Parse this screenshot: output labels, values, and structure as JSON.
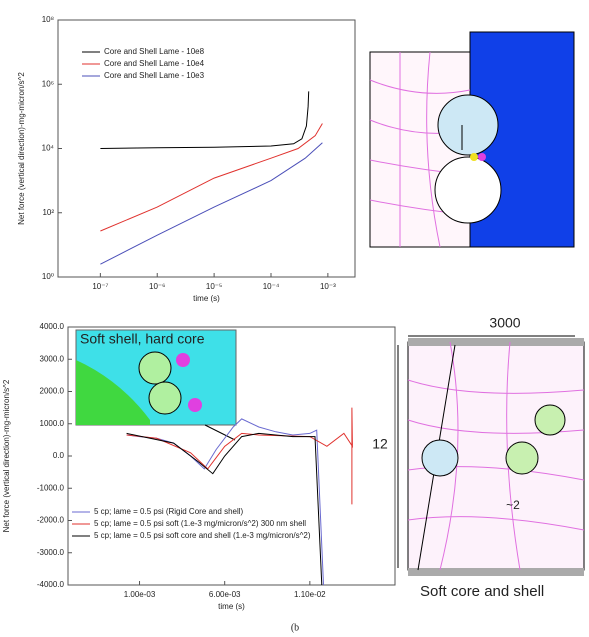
{
  "chart_data": [
    {
      "type": "line",
      "log_x": true,
      "log_y": true,
      "y_label": "Net force (vertical direction)-mg-micron/s^2",
      "x_label": "time (s)",
      "xlim": [
        1.8e-08,
        0.003
      ],
      "ylim": [
        1,
        100000000.0
      ],
      "xticks": [
        {
          "value": 1e-07,
          "label": "10⁻⁷"
        },
        {
          "value": 1e-06,
          "label": "10⁻⁶"
        },
        {
          "value": 1e-05,
          "label": "10⁻⁵"
        },
        {
          "value": 0.0001,
          "label": "10⁻⁴"
        },
        {
          "value": 0.001,
          "label": "10⁻³"
        }
      ],
      "yticks": [
        {
          "value": 1,
          "label": "10⁰"
        },
        {
          "value": 100,
          "label": "10²"
        },
        {
          "value": 10000,
          "label": "10⁴"
        },
        {
          "value": 1000000,
          "label": "10⁶"
        },
        {
          "value": 100000000,
          "label": "10⁸"
        }
      ],
      "series": [
        {
          "name": "Core and Shell Lame - 10e8",
          "color": "#000000",
          "x": [
            1e-07,
            1e-06,
            1e-05,
            0.0001,
            0.00025,
            0.00035,
            0.00042,
            0.00045,
            0.00046
          ],
          "values": [
            10000,
            10500,
            11000,
            12000,
            14000,
            20000,
            50000,
            200000,
            600000
          ]
        },
        {
          "name": "Core and Shell Lame - 10e4",
          "color": "#e0322e",
          "x": [
            1e-07,
            1e-06,
            1e-05,
            0.0001,
            0.0003,
            0.0006,
            0.0008
          ],
          "values": [
            27,
            150,
            1200,
            5000,
            10000,
            25000,
            60000
          ]
        },
        {
          "name": "Core and Shell Lame - 10e3",
          "color": "#4b4fb8",
          "x": [
            1e-07,
            1e-06,
            1e-05,
            0.0001,
            0.0004,
            0.0008
          ],
          "values": [
            2.5,
            20,
            150,
            1000,
            5000,
            15000
          ]
        }
      ]
    },
    {
      "type": "line",
      "log_x": false,
      "log_y": false,
      "y_label": "Net force (vertical direction)-mg-micron/s^2",
      "x_label": "time (s)",
      "xlim": [
        -0.0032,
        0.016
      ],
      "ylim": [
        -4000,
        4000
      ],
      "xticks": [
        {
          "value": 0.001,
          "label": "1.00e-03"
        },
        {
          "value": 0.006,
          "label": "6.00e-03"
        },
        {
          "value": 0.011,
          "label": "1.10e-02"
        }
      ],
      "yticks": [
        {
          "value": 4000,
          "label": "4000.0"
        },
        {
          "value": 3000,
          "label": "3000.0"
        },
        {
          "value": 2000,
          "label": "2000.0"
        },
        {
          "value": 1000,
          "label": "1000.0"
        },
        {
          "value": 0,
          "label": "0.0"
        },
        {
          "value": -1000,
          "label": "-1000.0"
        },
        {
          "value": -2000,
          "label": "-2000.0"
        },
        {
          "value": -3000,
          "label": "-3000.0"
        },
        {
          "value": -4000,
          "label": "-4000.0"
        }
      ],
      "series": [
        {
          "name": "5 cp; lame = 0.5 psi (Rigid Core and shell)",
          "color": "#6a6ad0",
          "x": [
            0.00024,
            0.001,
            0.002,
            0.003,
            0.004,
            0.0048,
            0.0055,
            0.0065,
            0.007,
            0.008,
            0.009,
            0.01,
            0.011,
            0.0114,
            0.0118
          ],
          "values": [
            650,
            600,
            550,
            400,
            0,
            -400,
            200,
            900,
            1150,
            900,
            750,
            650,
            700,
            800,
            -4000
          ]
        },
        {
          "name": "5 cp; lame = 0.5 psi soft (1.e-3 mg/micron/s^2) 300 nm shell",
          "color": "#e0322e",
          "x": [
            0.00024,
            0.002,
            0.004,
            0.005,
            0.006,
            0.007,
            0.008,
            0.011,
            0.012,
            0.013,
            0.0135,
            0.01347,
            0.01347
          ],
          "values": [
            650,
            550,
            100,
            -400,
            300,
            700,
            650,
            600,
            300,
            700,
            300,
            1500,
            -1500
          ]
        },
        {
          "name": "5 cp; lame = 0.5 psi soft core and shell (1.e-3 mg/micron/s^2)",
          "color": "#000000",
          "x": [
            0.00024,
            0.003,
            0.0045,
            0.0053,
            0.006,
            0.007,
            0.008,
            0.01,
            0.0113,
            0.0117
          ],
          "values": [
            700,
            400,
            -200,
            -550,
            0,
            600,
            700,
            600,
            600,
            -4000
          ]
        }
      ]
    }
  ],
  "figure": {
    "inset_label": "Soft shell, hard core",
    "width_label": "3000",
    "height_label": "12",
    "gap_label": "~2",
    "caption": "Soft core and shell",
    "panel": "(b"
  }
}
